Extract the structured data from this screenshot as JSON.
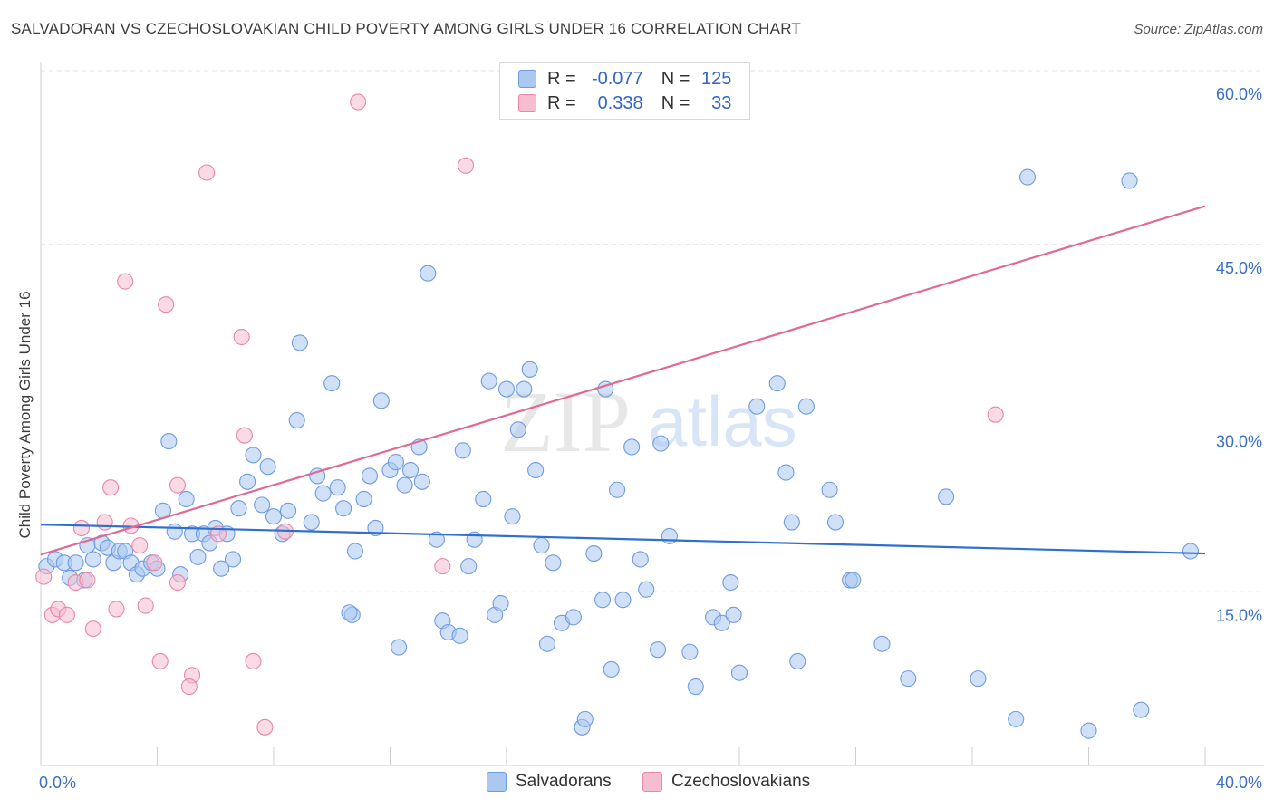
{
  "title": "SALVADORAN VS CZECHOSLOVAKIAN CHILD POVERTY AMONG GIRLS UNDER 16 CORRELATION CHART",
  "source": "Source: ZipAtlas.com",
  "watermark": {
    "zip": "ZIP",
    "atlas": "atlas"
  },
  "legend_top": [
    {
      "r_label": "R =",
      "r_value": "-0.077",
      "n_label": "N =",
      "n_value": "125",
      "fill": "#aac8f0",
      "stroke": "#6f9be0"
    },
    {
      "r_label": "R =",
      "r_value": "0.338",
      "n_label": "N =",
      "n_value": "33",
      "fill": "#f6bcd0",
      "stroke": "#e887a8"
    }
  ],
  "legend_bottom": [
    {
      "label": "Salvadorans",
      "fill": "#aac8f0",
      "stroke": "#6f9be0"
    },
    {
      "label": "Czechoslovakians",
      "fill": "#f6bcd0",
      "stroke": "#e887a8"
    }
  ],
  "chart_data": {
    "type": "scatter",
    "xlabel": "",
    "ylabel": "Child Poverty Among Girls Under 16",
    "xlim": [
      0,
      40
    ],
    "ylim": [
      0,
      60
    ],
    "x_tick_labels": [
      "0.0%",
      "40.0%"
    ],
    "y_ticks": [
      15,
      30,
      45,
      60
    ],
    "y_tick_labels": [
      "15.0%",
      "30.0%",
      "45.0%",
      "60.0%"
    ],
    "grid": "horizontal dashed",
    "legend_position": "top-center",
    "colors": {
      "blue_fill": "#aac8f0",
      "blue_line": "#2f6fd0",
      "pink_fill": "#f6bcd0",
      "pink_line": "#e06a96"
    },
    "series": [
      {
        "name": "Salvadorans",
        "r": -0.077,
        "n": 125,
        "trend": {
          "x": [
            0,
            40
          ],
          "y": [
            20.8,
            18.3
          ]
        },
        "points": [
          [
            0.2,
            17.2
          ],
          [
            0.5,
            17.8
          ],
          [
            0.8,
            17.5
          ],
          [
            1.0,
            16.2
          ],
          [
            1.2,
            17.5
          ],
          [
            1.5,
            16.0
          ],
          [
            1.6,
            19.0
          ],
          [
            1.8,
            17.8
          ],
          [
            2.1,
            19.2
          ],
          [
            2.3,
            18.8
          ],
          [
            2.5,
            17.5
          ],
          [
            2.7,
            18.5
          ],
          [
            2.9,
            18.5
          ],
          [
            3.1,
            17.5
          ],
          [
            3.3,
            16.5
          ],
          [
            3.5,
            17.0
          ],
          [
            3.8,
            17.5
          ],
          [
            4.0,
            17.0
          ],
          [
            4.2,
            22.0
          ],
          [
            4.4,
            28.0
          ],
          [
            4.6,
            20.2
          ],
          [
            4.8,
            16.5
          ],
          [
            5.0,
            23.0
          ],
          [
            5.2,
            20.0
          ],
          [
            5.4,
            18.0
          ],
          [
            5.6,
            20.0
          ],
          [
            5.8,
            19.2
          ],
          [
            6.0,
            20.5
          ],
          [
            6.2,
            17.0
          ],
          [
            6.4,
            20.0
          ],
          [
            6.6,
            17.8
          ],
          [
            6.8,
            22.2
          ],
          [
            7.1,
            24.5
          ],
          [
            7.3,
            26.8
          ],
          [
            7.6,
            22.5
          ],
          [
            7.8,
            25.8
          ],
          [
            8.0,
            21.5
          ],
          [
            8.3,
            20.0
          ],
          [
            8.5,
            22.0
          ],
          [
            8.8,
            29.8
          ],
          [
            8.9,
            36.5
          ],
          [
            9.3,
            21.0
          ],
          [
            9.5,
            25.0
          ],
          [
            9.7,
            23.5
          ],
          [
            10.0,
            33.0
          ],
          [
            10.2,
            24.0
          ],
          [
            10.4,
            22.2
          ],
          [
            10.7,
            13.0
          ],
          [
            10.8,
            18.5
          ],
          [
            11.1,
            23.0
          ],
          [
            11.3,
            25.0
          ],
          [
            11.5,
            20.5
          ],
          [
            11.7,
            31.5
          ],
          [
            12.0,
            25.5
          ],
          [
            12.2,
            26.2
          ],
          [
            12.3,
            10.2
          ],
          [
            12.5,
            24.2
          ],
          [
            12.7,
            25.5
          ],
          [
            13.0,
            27.5
          ],
          [
            13.1,
            24.5
          ],
          [
            13.3,
            42.5
          ],
          [
            13.6,
            19.5
          ],
          [
            13.8,
            12.5
          ],
          [
            14.0,
            11.5
          ],
          [
            14.4,
            11.2
          ],
          [
            14.5,
            27.2
          ],
          [
            14.7,
            17.2
          ],
          [
            14.9,
            19.5
          ],
          [
            15.2,
            23.0
          ],
          [
            15.4,
            33.2
          ],
          [
            15.6,
            13.0
          ],
          [
            15.8,
            14.0
          ],
          [
            16.0,
            32.5
          ],
          [
            16.2,
            21.5
          ],
          [
            16.4,
            29.0
          ],
          [
            16.6,
            32.5
          ],
          [
            16.8,
            34.2
          ],
          [
            17.0,
            25.5
          ],
          [
            17.2,
            19.0
          ],
          [
            17.4,
            10.5
          ],
          [
            17.6,
            17.5
          ],
          [
            17.9,
            12.3
          ],
          [
            18.3,
            12.8
          ],
          [
            18.6,
            3.3
          ],
          [
            18.7,
            4.0
          ],
          [
            19.0,
            18.3
          ],
          [
            19.3,
            14.3
          ],
          [
            19.6,
            8.3
          ],
          [
            19.8,
            23.8
          ],
          [
            19.4,
            32.5
          ],
          [
            20.3,
            27.5
          ],
          [
            20.6,
            17.8
          ],
          [
            20.8,
            15.2
          ],
          [
            21.2,
            10.0
          ],
          [
            21.3,
            27.8
          ],
          [
            21.6,
            19.8
          ],
          [
            22.3,
            9.8
          ],
          [
            22.5,
            6.8
          ],
          [
            23.1,
            12.8
          ],
          [
            23.4,
            12.3
          ],
          [
            23.7,
            15.8
          ],
          [
            23.8,
            13.0
          ],
          [
            24.0,
            8.0
          ],
          [
            24.6,
            31.0
          ],
          [
            25.3,
            33.0
          ],
          [
            25.6,
            25.3
          ],
          [
            25.8,
            21.0
          ],
          [
            26.0,
            9.0
          ],
          [
            26.3,
            31.0
          ],
          [
            27.1,
            23.8
          ],
          [
            27.3,
            21.0
          ],
          [
            27.8,
            16.0
          ],
          [
            27.9,
            16.0
          ],
          [
            28.9,
            10.5
          ],
          [
            29.8,
            7.5
          ],
          [
            31.1,
            23.2
          ],
          [
            32.2,
            7.5
          ],
          [
            33.5,
            4.0
          ],
          [
            33.9,
            50.8
          ],
          [
            36.0,
            3.0
          ],
          [
            37.4,
            50.5
          ],
          [
            37.8,
            4.8
          ],
          [
            39.5,
            18.5
          ],
          [
            10.6,
            13.2
          ],
          [
            20.0,
            14.3
          ]
        ]
      },
      {
        "name": "Czechoslovakians",
        "r": 0.338,
        "n": 33,
        "trend": {
          "x": [
            0,
            40
          ],
          "y": [
            18.2,
            48.3
          ]
        },
        "points": [
          [
            0.1,
            16.3
          ],
          [
            0.4,
            13.0
          ],
          [
            0.6,
            13.5
          ],
          [
            0.9,
            13.0
          ],
          [
            1.2,
            15.8
          ],
          [
            1.4,
            20.5
          ],
          [
            1.6,
            16.0
          ],
          [
            1.8,
            11.8
          ],
          [
            2.2,
            21.0
          ],
          [
            2.4,
            24.0
          ],
          [
            2.6,
            13.5
          ],
          [
            2.9,
            41.8
          ],
          [
            3.1,
            20.7
          ],
          [
            3.4,
            19.0
          ],
          [
            3.6,
            13.8
          ],
          [
            3.9,
            17.5
          ],
          [
            4.1,
            9.0
          ],
          [
            4.3,
            39.8
          ],
          [
            4.7,
            24.2
          ],
          [
            4.7,
            15.8
          ],
          [
            5.2,
            7.8
          ],
          [
            5.1,
            6.8
          ],
          [
            5.7,
            51.2
          ],
          [
            6.1,
            20.0
          ],
          [
            6.9,
            37.0
          ],
          [
            7.0,
            28.5
          ],
          [
            7.3,
            9.0
          ],
          [
            7.7,
            3.3
          ],
          [
            8.4,
            20.2
          ],
          [
            10.9,
            57.3
          ],
          [
            13.8,
            17.2
          ],
          [
            14.6,
            51.8
          ],
          [
            32.8,
            30.3
          ]
        ]
      }
    ]
  }
}
